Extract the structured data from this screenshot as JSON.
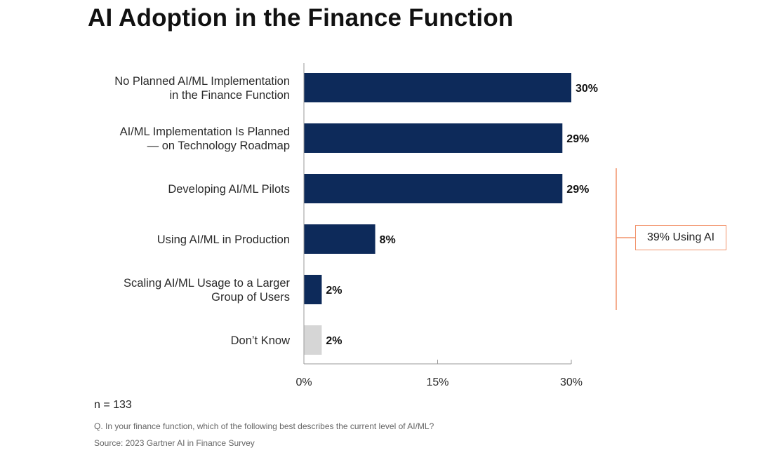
{
  "chart_data": {
    "type": "bar",
    "orientation": "horizontal",
    "title": "AI Adoption in the Finance Function",
    "categories": [
      [
        "No Planned AI/ML Implementation",
        "in the Finance Function"
      ],
      [
        "AI/ML Implementation Is Planned",
        "— on Technology Roadmap"
      ],
      [
        "Developing AI/ML Pilots"
      ],
      [
        "Using AI/ML in Production"
      ],
      [
        "Scaling AI/ML Usage to a Larger",
        "Group of Users"
      ],
      [
        "Don’t Know"
      ]
    ],
    "values": [
      30,
      29,
      29,
      8,
      2,
      2
    ],
    "value_labels": [
      "30%",
      "29%",
      "29%",
      "8%",
      "2%",
      "2%"
    ],
    "xlim": [
      0,
      30
    ],
    "xticks": [
      0,
      15,
      30
    ],
    "xtick_labels": [
      "0%",
      "15%",
      "30%"
    ],
    "grid": false,
    "legend": "none",
    "colors": {
      "bar": "#0d2a5a",
      "dont_know_bar": "#d6d6d6",
      "axis": "#9a9a9a",
      "annotation": "#f2936b"
    },
    "annotation": {
      "text": "39% Using AI",
      "spans_categories": [
        2,
        4
      ]
    }
  },
  "notes": {
    "sample_size": "n = 133",
    "question": "Q. In your finance function, which of the following best describes the current level of AI/ML?",
    "source": "Source: 2023 Gartner AI in Finance Survey"
  }
}
